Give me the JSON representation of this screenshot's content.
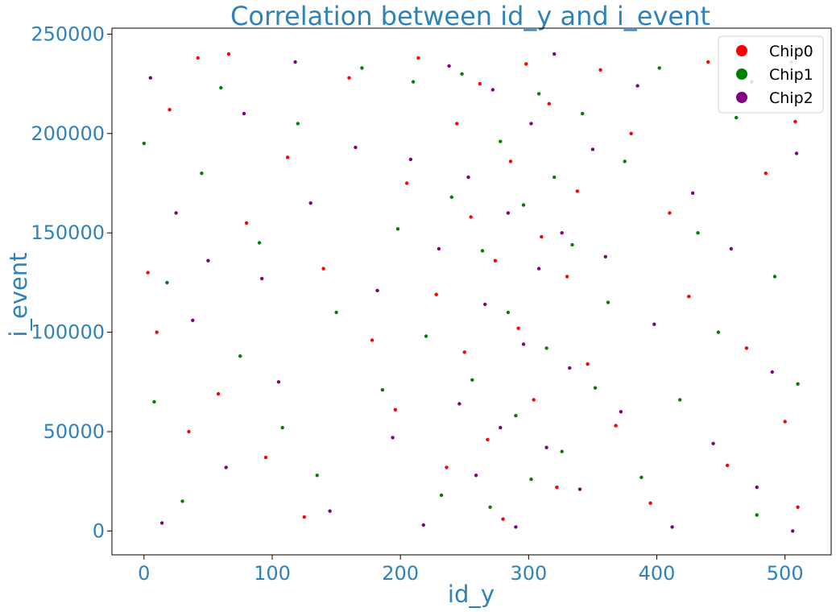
{
  "chart_data": {
    "type": "scatter",
    "title": "Correlation between id_y and i_event",
    "xlabel": "id_y",
    "ylabel": "i_event",
    "xlim": [
      -25,
      536
    ],
    "ylim": [
      -12000,
      253000
    ],
    "xticks": [
      "0",
      "100",
      "200",
      "300",
      "400",
      "500"
    ],
    "xtick_values": [
      0,
      100,
      200,
      300,
      400,
      500
    ],
    "yticks": [
      "0",
      "50000",
      "100000",
      "150000",
      "200000",
      "250000"
    ],
    "ytick_values": [
      0,
      50000,
      100000,
      150000,
      200000,
      250000
    ],
    "grid": false,
    "legend_position": "top-right",
    "series": [
      {
        "name": "Chip0",
        "color": "#ff0000",
        "values": [
          [
            3,
            130000
          ],
          [
            10,
            100000
          ],
          [
            20,
            212000
          ],
          [
            35,
            50000
          ],
          [
            42,
            238000
          ],
          [
            58,
            69000
          ],
          [
            66,
            240000
          ],
          [
            80,
            155000
          ],
          [
            95,
            37000
          ],
          [
            112,
            188000
          ],
          [
            125,
            7000
          ],
          [
            140,
            132000
          ],
          [
            160,
            228000
          ],
          [
            178,
            96000
          ],
          [
            196,
            61000
          ],
          [
            205,
            175000
          ],
          [
            214,
            238000
          ],
          [
            228,
            119000
          ],
          [
            236,
            32000
          ],
          [
            244,
            205000
          ],
          [
            250,
            90000
          ],
          [
            255,
            158000
          ],
          [
            262,
            225000
          ],
          [
            268,
            46000
          ],
          [
            274,
            136000
          ],
          [
            280,
            6000
          ],
          [
            286,
            186000
          ],
          [
            292,
            102000
          ],
          [
            298,
            235000
          ],
          [
            304,
            66000
          ],
          [
            310,
            148000
          ],
          [
            316,
            215000
          ],
          [
            322,
            22000
          ],
          [
            330,
            128000
          ],
          [
            338,
            171000
          ],
          [
            346,
            84000
          ],
          [
            356,
            232000
          ],
          [
            368,
            53000
          ],
          [
            380,
            200000
          ],
          [
            395,
            14000
          ],
          [
            410,
            160000
          ],
          [
            425,
            118000
          ],
          [
            440,
            236000
          ],
          [
            455,
            33000
          ],
          [
            470,
            92000
          ],
          [
            485,
            180000
          ],
          [
            500,
            55000
          ],
          [
            510,
            12000
          ],
          [
            508,
            206000
          ]
        ]
      },
      {
        "name": "Chip1",
        "color": "#008000",
        "values": [
          [
            0,
            195000
          ],
          [
            8,
            65000
          ],
          [
            18,
            125000
          ],
          [
            30,
            15000
          ],
          [
            45,
            180000
          ],
          [
            60,
            223000
          ],
          [
            75,
            88000
          ],
          [
            90,
            145000
          ],
          [
            108,
            52000
          ],
          [
            120,
            205000
          ],
          [
            135,
            28000
          ],
          [
            150,
            110000
          ],
          [
            170,
            233000
          ],
          [
            186,
            71000
          ],
          [
            198,
            152000
          ],
          [
            210,
            226000
          ],
          [
            220,
            98000
          ],
          [
            232,
            18000
          ],
          [
            240,
            168000
          ],
          [
            248,
            230000
          ],
          [
            256,
            76000
          ],
          [
            264,
            141000
          ],
          [
            270,
            12000
          ],
          [
            278,
            196000
          ],
          [
            284,
            110000
          ],
          [
            290,
            58000
          ],
          [
            296,
            164000
          ],
          [
            302,
            26000
          ],
          [
            308,
            220000
          ],
          [
            314,
            92000
          ],
          [
            320,
            178000
          ],
          [
            326,
            40000
          ],
          [
            334,
            144000
          ],
          [
            342,
            210000
          ],
          [
            352,
            72000
          ],
          [
            362,
            115000
          ],
          [
            375,
            186000
          ],
          [
            388,
            27000
          ],
          [
            402,
            233000
          ],
          [
            418,
            66000
          ],
          [
            432,
            150000
          ],
          [
            448,
            100000
          ],
          [
            462,
            208000
          ],
          [
            478,
            8000
          ],
          [
            492,
            128000
          ],
          [
            505,
            236000
          ],
          [
            510,
            74000
          ]
        ]
      },
      {
        "name": "Chip2",
        "color": "#800080",
        "values": [
          [
            5,
            228000
          ],
          [
            14,
            4000
          ],
          [
            25,
            160000
          ],
          [
            38,
            106000
          ],
          [
            50,
            136000
          ],
          [
            64,
            32000
          ],
          [
            78,
            210000
          ],
          [
            92,
            127000
          ],
          [
            105,
            75000
          ],
          [
            118,
            236000
          ],
          [
            130,
            165000
          ],
          [
            145,
            10000
          ],
          [
            165,
            193000
          ],
          [
            182,
            121000
          ],
          [
            194,
            47000
          ],
          [
            208,
            187000
          ],
          [
            218,
            3000
          ],
          [
            230,
            142000
          ],
          [
            238,
            234000
          ],
          [
            246,
            64000
          ],
          [
            253,
            178000
          ],
          [
            259,
            28000
          ],
          [
            266,
            114000
          ],
          [
            272,
            222000
          ],
          [
            278,
            52000
          ],
          [
            284,
            160000
          ],
          [
            290,
            2000
          ],
          [
            296,
            94000
          ],
          [
            302,
            205000
          ],
          [
            308,
            132000
          ],
          [
            314,
            42000
          ],
          [
            320,
            240000
          ],
          [
            326,
            150000
          ],
          [
            332,
            82000
          ],
          [
            340,
            21000
          ],
          [
            350,
            192000
          ],
          [
            360,
            138000
          ],
          [
            372,
            60000
          ],
          [
            385,
            224000
          ],
          [
            398,
            104000
          ],
          [
            412,
            2000
          ],
          [
            428,
            170000
          ],
          [
            444,
            44000
          ],
          [
            458,
            142000
          ],
          [
            474,
            226000
          ],
          [
            490,
            80000
          ],
          [
            506,
            0
          ],
          [
            509,
            190000
          ],
          [
            478,
            22000
          ]
        ]
      }
    ]
  }
}
